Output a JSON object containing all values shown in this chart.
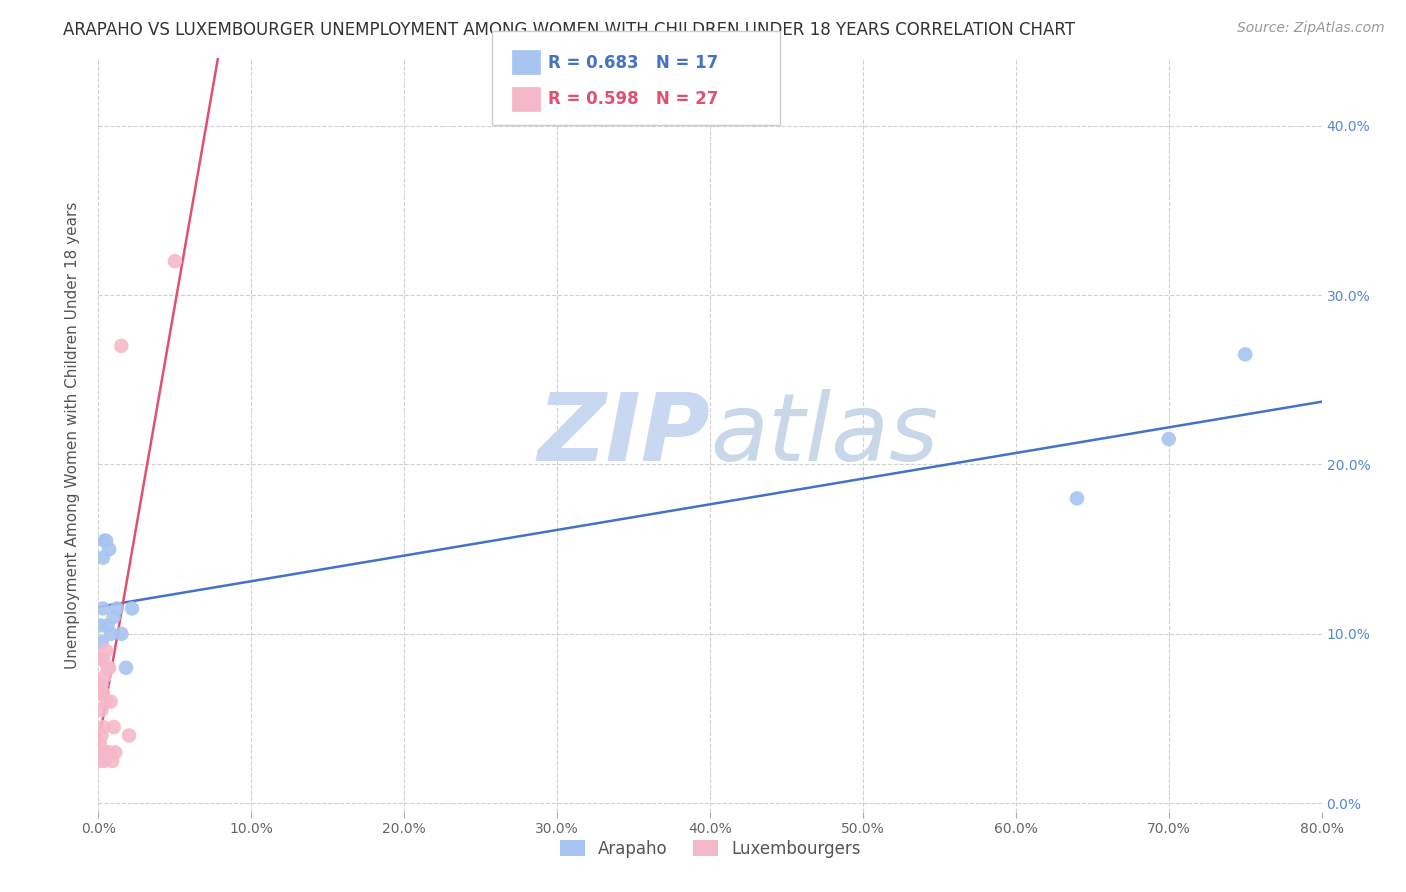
{
  "title": "ARAPAHO VS LUXEMBOURGER UNEMPLOYMENT AMONG WOMEN WITH CHILDREN UNDER 18 YEARS CORRELATION CHART",
  "source": "Source: ZipAtlas.com",
  "ylabel": "Unemployment Among Women with Children Under 18 years",
  "xlim": [
    0,
    0.8
  ],
  "ylim": [
    -0.005,
    0.44
  ],
  "arapaho_color": "#a8c4f0",
  "luxembourger_color": "#f5b8c8",
  "arapaho_line_color": "#4472c4",
  "luxembourger_line_color": "#e05070",
  "arapaho_R": 0.683,
  "arapaho_N": 17,
  "luxembourger_R": 0.598,
  "luxembourger_N": 27,
  "arapaho_x": [
    0.001,
    0.002,
    0.003,
    0.003,
    0.004,
    0.005,
    0.006,
    0.007,
    0.008,
    0.01,
    0.012,
    0.015,
    0.018,
    0.022,
    0.64,
    0.7,
    0.75
  ],
  "arapaho_y": [
    0.105,
    0.095,
    0.115,
    0.145,
    0.155,
    0.155,
    0.105,
    0.15,
    0.1,
    0.11,
    0.115,
    0.1,
    0.08,
    0.115,
    0.18,
    0.215,
    0.265
  ],
  "luxembourger_x": [
    0.0005,
    0.001,
    0.001,
    0.0015,
    0.002,
    0.002,
    0.002,
    0.002,
    0.003,
    0.003,
    0.003,
    0.003,
    0.004,
    0.004,
    0.005,
    0.005,
    0.005,
    0.006,
    0.007,
    0.007,
    0.008,
    0.009,
    0.01,
    0.011,
    0.015,
    0.02,
    0.05
  ],
  "luxembourger_y": [
    0.025,
    0.035,
    0.065,
    0.07,
    0.04,
    0.055,
    0.07,
    0.085,
    0.03,
    0.045,
    0.065,
    0.085,
    0.025,
    0.075,
    0.03,
    0.06,
    0.09,
    0.08,
    0.03,
    0.08,
    0.06,
    0.025,
    0.045,
    0.03,
    0.27,
    0.04,
    0.32
  ],
  "grid_color": "#d0d0d0",
  "background_color": "#ffffff",
  "watermark_zip_color": "#c8d8f0",
  "watermark_atlas_color": "#c8d8e8",
  "legend_facecolor": "#ffffff",
  "legend_edgecolor": "#bbbbbb",
  "title_fontsize": 12,
  "source_fontsize": 10,
  "label_fontsize": 11,
  "tick_fontsize": 10,
  "legend_fontsize": 12,
  "ytick_right_color": "#5588cc"
}
